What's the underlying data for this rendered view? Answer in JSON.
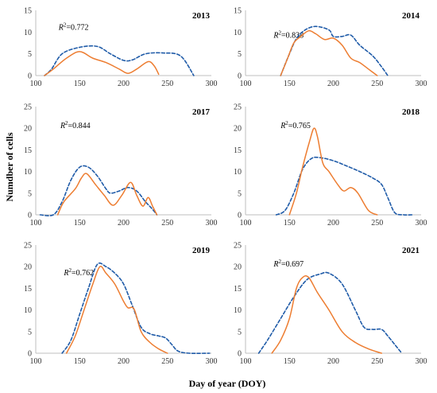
{
  "figure": {
    "xlabel": "Day of year (DOY)",
    "ylabel": "Numdber of cells"
  },
  "chart_data": [
    {
      "type": "line",
      "year_label": "2013",
      "r2_prefix": "R",
      "r2_sup": "2",
      "r2_value": "=0.772",
      "xlim": [
        100,
        300
      ],
      "ylim": [
        0,
        15
      ],
      "xticks": [
        "100",
        "150",
        "200",
        "250",
        "300"
      ],
      "yticks": [
        "0",
        "5",
        "10",
        "15"
      ],
      "series": [
        {
          "style": "solid",
          "color": "#ED7D31",
          "points": [
            [
              110,
              0
            ],
            [
              120,
              1.5
            ],
            [
              135,
              4
            ],
            [
              150,
              5.5
            ],
            [
              165,
              4
            ],
            [
              180,
              3
            ],
            [
              195,
              1.5
            ],
            [
              205,
              0.5
            ],
            [
              215,
              1.5
            ],
            [
              228,
              3.2
            ],
            [
              235,
              2.2
            ],
            [
              240,
              0.3
            ]
          ]
        },
        {
          "style": "dashed",
          "color": "#1F5BA8",
          "points": [
            [
              110,
              0
            ],
            [
              118,
              1.5
            ],
            [
              130,
              5
            ],
            [
              150,
              6.5
            ],
            [
              170,
              6.7
            ],
            [
              185,
              5
            ],
            [
              200,
              3.5
            ],
            [
              210,
              3.6
            ],
            [
              225,
              5
            ],
            [
              245,
              5.2
            ],
            [
              265,
              4.5
            ],
            [
              280,
              0
            ]
          ]
        }
      ]
    },
    {
      "type": "line",
      "year_label": "2014",
      "r2_prefix": "R",
      "r2_sup": "2",
      "r2_value": "=0.838",
      "xlim": [
        100,
        300
      ],
      "ylim": [
        0,
        15
      ],
      "xticks": [
        "100",
        "150",
        "200",
        "250",
        "300"
      ],
      "yticks": [
        "0",
        "5",
        "10",
        "15"
      ],
      "series": [
        {
          "style": "solid",
          "color": "#ED7D31",
          "points": [
            [
              140,
              0
            ],
            [
              148,
              4
            ],
            [
              155,
              7.5
            ],
            [
              163,
              9
            ],
            [
              172,
              10.3
            ],
            [
              180,
              9.6
            ],
            [
              190,
              8.3
            ],
            [
              200,
              8.6
            ],
            [
              210,
              7
            ],
            [
              220,
              4
            ],
            [
              230,
              3
            ],
            [
              240,
              1.5
            ],
            [
              250,
              0
            ]
          ]
        },
        {
          "style": "dashed",
          "color": "#1F5BA8",
          "points": [
            [
              140,
              0
            ],
            [
              150,
              5
            ],
            [
              158,
              8.5
            ],
            [
              168,
              10.5
            ],
            [
              180,
              11.3
            ],
            [
              195,
              10.5
            ],
            [
              200,
              9
            ],
            [
              210,
              9
            ],
            [
              220,
              9.3
            ],
            [
              230,
              7
            ],
            [
              245,
              4.5
            ],
            [
              255,
              2
            ],
            [
              262,
              0
            ]
          ]
        }
      ]
    },
    {
      "type": "line",
      "year_label": "2017",
      "r2_prefix": "R",
      "r2_sup": "2",
      "r2_value": "=0.844",
      "xlim": [
        100,
        300
      ],
      "ylim": [
        0,
        25
      ],
      "xticks": [
        "100",
        "150",
        "200",
        "250",
        "300"
      ],
      "yticks": [
        "0",
        "5",
        "10",
        "15",
        "20",
        "25"
      ],
      "series": [
        {
          "style": "solid",
          "color": "#ED7D31",
          "points": [
            [
              125,
              0
            ],
            [
              132,
              3
            ],
            [
              145,
              6
            ],
            [
              152,
              8.5
            ],
            [
              158,
              9.5
            ],
            [
              168,
              7
            ],
            [
              178,
              4.5
            ],
            [
              188,
              2.2
            ],
            [
              198,
              4.5
            ],
            [
              208,
              7.5
            ],
            [
              215,
              4.5
            ],
            [
              222,
              2
            ],
            [
              228,
              4
            ],
            [
              233,
              2
            ],
            [
              238,
              0
            ]
          ]
        },
        {
          "style": "dashed",
          "color": "#1F5BA8",
          "points": [
            [
              105,
              0
            ],
            [
              120,
              0
            ],
            [
              130,
              3
            ],
            [
              140,
              8
            ],
            [
              150,
              11
            ],
            [
              160,
              11
            ],
            [
              170,
              9
            ],
            [
              180,
              6
            ],
            [
              185,
              5
            ],
            [
              195,
              5.5
            ],
            [
              205,
              6.3
            ],
            [
              215,
              5.5
            ],
            [
              225,
              3
            ],
            [
              232,
              1.5
            ],
            [
              238,
              0
            ]
          ]
        }
      ]
    },
    {
      "type": "line",
      "year_label": "2018",
      "r2_prefix": "R",
      "r2_sup": "2",
      "r2_value": "=0.765",
      "xlim": [
        100,
        300
      ],
      "ylim": [
        0,
        25
      ],
      "xticks": [
        "100",
        "150",
        "200",
        "250",
        "300"
      ],
      "yticks": [
        "0",
        "5",
        "10",
        "15",
        "20",
        "25"
      ],
      "series": [
        {
          "style": "solid",
          "color": "#ED7D31",
          "points": [
            [
              150,
              0
            ],
            [
              158,
              5
            ],
            [
              165,
              11
            ],
            [
              173,
              17
            ],
            [
              178,
              20
            ],
            [
              182,
              18
            ],
            [
              188,
              12
            ],
            [
              195,
              10
            ],
            [
              205,
              7
            ],
            [
              212,
              5.5
            ],
            [
              220,
              6.3
            ],
            [
              228,
              5
            ],
            [
              240,
              1
            ],
            [
              250,
              0
            ]
          ]
        },
        {
          "style": "dashed",
          "color": "#1F5BA8",
          "points": [
            [
              135,
              0
            ],
            [
              145,
              1
            ],
            [
              155,
              5
            ],
            [
              165,
              10.5
            ],
            [
              175,
              13
            ],
            [
              185,
              13.2
            ],
            [
              200,
              12.5
            ],
            [
              215,
              11.3
            ],
            [
              230,
              10
            ],
            [
              245,
              8.5
            ],
            [
              255,
              7
            ],
            [
              262,
              4
            ],
            [
              270,
              0.5
            ],
            [
              280,
              0
            ],
            [
              290,
              0
            ]
          ]
        }
      ]
    },
    {
      "type": "line",
      "year_label": "2019",
      "r2_prefix": "R",
      "r2_sup": "2",
      "r2_value": "=0.762",
      "xlim": [
        100,
        300
      ],
      "ylim": [
        0,
        25
      ],
      "xticks": [
        "100",
        "150",
        "200",
        "250",
        "300"
      ],
      "yticks": [
        "0",
        "5",
        "10",
        "15",
        "20",
        "25"
      ],
      "series": [
        {
          "style": "solid",
          "color": "#ED7D31",
          "points": [
            [
              135,
              0
            ],
            [
              145,
              4
            ],
            [
              155,
              10
            ],
            [
              165,
              16
            ],
            [
              173,
              20
            ],
            [
              180,
              18.5
            ],
            [
              190,
              16
            ],
            [
              200,
              12
            ],
            [
              205,
              10.5
            ],
            [
              212,
              10.2
            ],
            [
              220,
              5
            ],
            [
              230,
              2.5
            ],
            [
              240,
              1
            ],
            [
              250,
              0
            ]
          ]
        },
        {
          "style": "dashed",
          "color": "#1F5BA8",
          "points": [
            [
              130,
              0
            ],
            [
              140,
              3
            ],
            [
              150,
              9
            ],
            [
              160,
              15
            ],
            [
              170,
              20.5
            ],
            [
              180,
              20
            ],
            [
              190,
              18.5
            ],
            [
              200,
              16
            ],
            [
              210,
              11
            ],
            [
              220,
              6
            ],
            [
              230,
              4.5
            ],
            [
              240,
              4
            ],
            [
              248,
              3.5
            ],
            [
              255,
              2
            ],
            [
              262,
              0.5
            ],
            [
              275,
              0
            ],
            [
              298,
              0
            ]
          ]
        }
      ]
    },
    {
      "type": "line",
      "year_label": "2021",
      "r2_prefix": "R",
      "r2_sup": "2",
      "r2_value": "=0.697",
      "xlim": [
        100,
        300
      ],
      "ylim": [
        0,
        25
      ],
      "xticks": [
        "100",
        "150",
        "200",
        "250",
        "300"
      ],
      "yticks": [
        "0",
        "5",
        "10",
        "15",
        "20",
        "25"
      ],
      "series": [
        {
          "style": "solid",
          "color": "#ED7D31",
          "points": [
            [
              130,
              0
            ],
            [
              140,
              3
            ],
            [
              150,
              8
            ],
            [
              158,
              15
            ],
            [
              165,
              17.5
            ],
            [
              172,
              17.5
            ],
            [
              182,
              14
            ],
            [
              195,
              10
            ],
            [
              210,
              5
            ],
            [
              225,
              2.5
            ],
            [
              240,
              1
            ],
            [
              255,
              0
            ]
          ]
        },
        {
          "style": "dashed",
          "color": "#1F5BA8",
          "points": [
            [
              115,
              0
            ],
            [
              125,
              3
            ],
            [
              140,
              8
            ],
            [
              155,
              13
            ],
            [
              170,
              17
            ],
            [
              185,
              18.3
            ],
            [
              195,
              18.5
            ],
            [
              210,
              16
            ],
            [
              225,
              10
            ],
            [
              235,
              6
            ],
            [
              245,
              5.5
            ],
            [
              255,
              5.5
            ],
            [
              262,
              4
            ],
            [
              270,
              2
            ],
            [
              278,
              0
            ]
          ]
        }
      ]
    }
  ]
}
